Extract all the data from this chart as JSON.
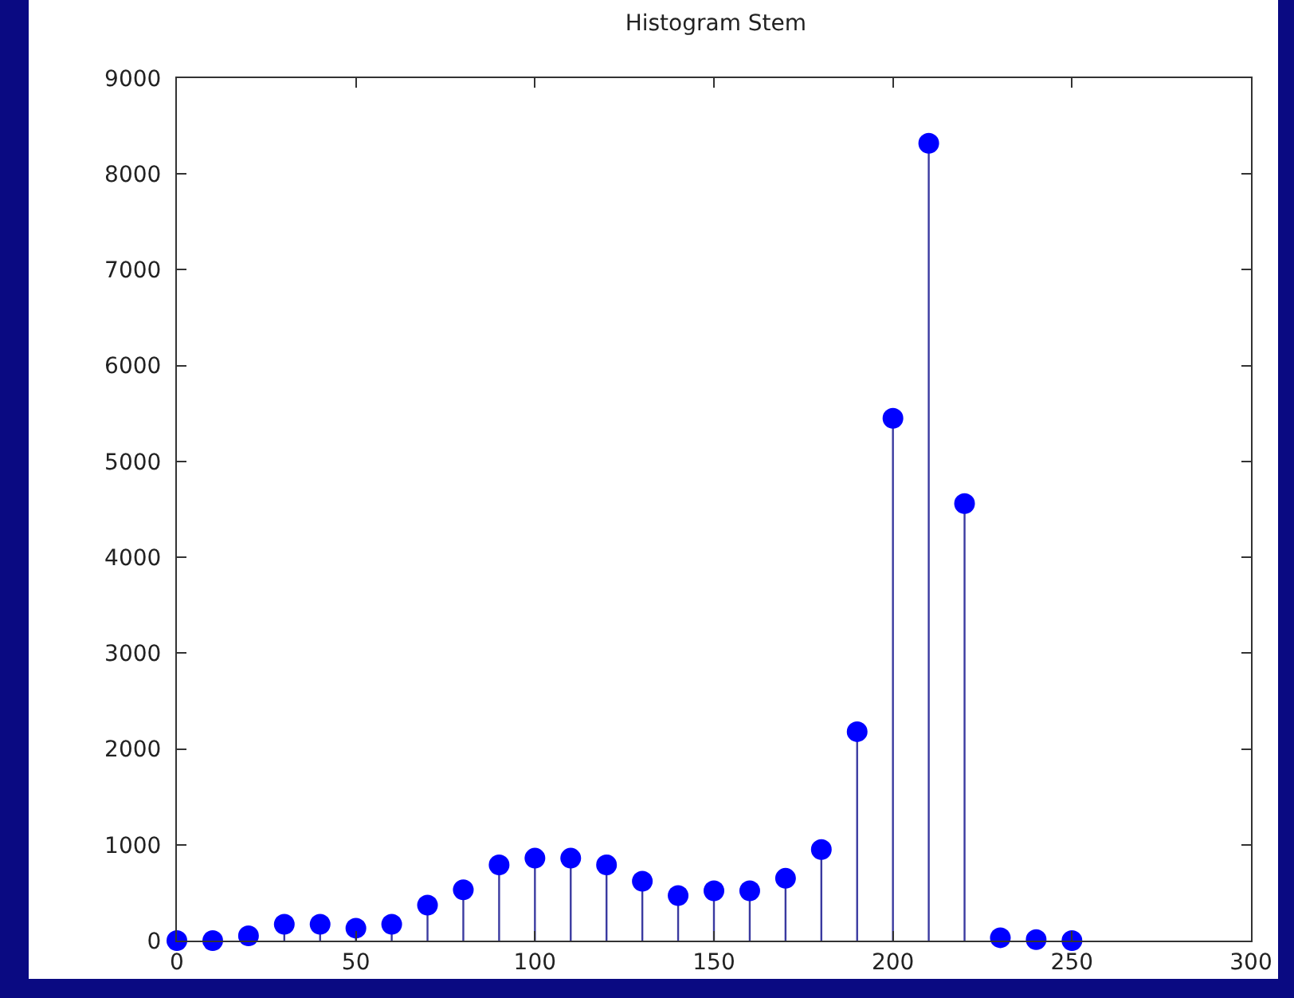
{
  "chart_data": {
    "type": "lollipop",
    "title": "Histogram Stem",
    "x": [
      0,
      10,
      20,
      30,
      40,
      50,
      60,
      70,
      80,
      90,
      100,
      110,
      120,
      130,
      140,
      150,
      160,
      170,
      180,
      190,
      200,
      210,
      220,
      230,
      240,
      250
    ],
    "series": [
      {
        "color": "#0000ff",
        "values": [
          0,
          0,
          50,
          170,
          170,
          130,
          170,
          370,
          530,
          790,
          860,
          860,
          790,
          620,
          470,
          520,
          520,
          650,
          950,
          2180,
          5450,
          8320,
          4560,
          30,
          10,
          0
        ]
      }
    ],
    "xlim": [
      0,
      300
    ],
    "xticks": [
      0,
      50,
      100,
      150,
      200,
      250,
      300
    ],
    "ylim": [
      0,
      9000
    ],
    "yticks": [
      0,
      1000,
      2000,
      3000,
      4000,
      5000,
      6000,
      7000,
      8000,
      9000
    ],
    "grid": false,
    "marker": "circle"
  }
}
